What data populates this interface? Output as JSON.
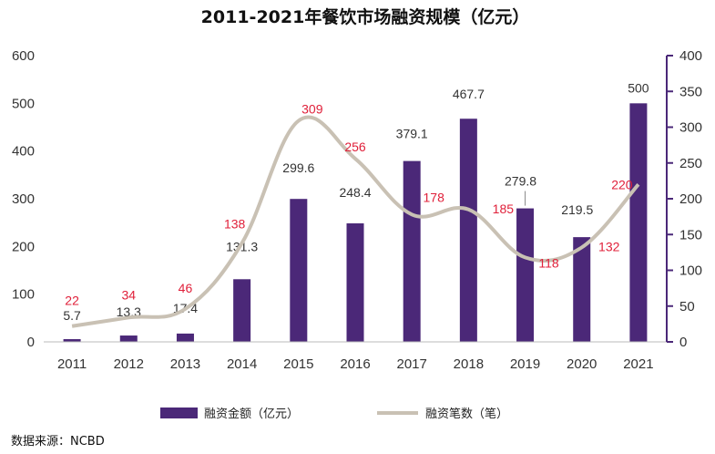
{
  "chart_data": {
    "type": "bar+line",
    "title": "2011-2021年餐饮市场融资规模（亿元）",
    "categories": [
      "2011",
      "2012",
      "2013",
      "2014",
      "2015",
      "2016",
      "2017",
      "2018",
      "2019",
      "2020",
      "2021"
    ],
    "series": [
      {
        "name": "融资金额（亿元）",
        "type": "bar",
        "axis": "left",
        "color": "#4b2878",
        "values": [
          5.7,
          13.3,
          17.4,
          131.3,
          299.6,
          248.4,
          379.1,
          467.7,
          279.8,
          219.5,
          500
        ],
        "labels": [
          "5.7",
          "13.3",
          "17.4",
          "131.3",
          "299.6",
          "248.4",
          "379.1",
          "467.7",
          "279.8",
          "219.5",
          "500"
        ]
      },
      {
        "name": "融资笔数（笔）",
        "type": "line",
        "axis": "right",
        "color": "#c9c1b4",
        "label_color": "#e0203a",
        "values": [
          22,
          34,
          46,
          138,
          309,
          256,
          178,
          185,
          118,
          132,
          220
        ],
        "labels": [
          "22",
          "34",
          "46",
          "138",
          "309",
          "256",
          "178",
          "185",
          "118",
          "132",
          "220"
        ]
      }
    ],
    "y_left": {
      "ylim": [
        0,
        600
      ],
      "ticks": [
        "0",
        "100",
        "200",
        "300",
        "400",
        "500",
        "600"
      ]
    },
    "y_right": {
      "ylim": [
        0,
        400
      ],
      "ticks": [
        "0",
        "50",
        "100",
        "150",
        "200",
        "250",
        "300",
        "350",
        "400"
      ]
    },
    "axis_color": "#4b2878",
    "grid": false,
    "legend_position": "bottom"
  },
  "source": "数据来源：NCBD"
}
